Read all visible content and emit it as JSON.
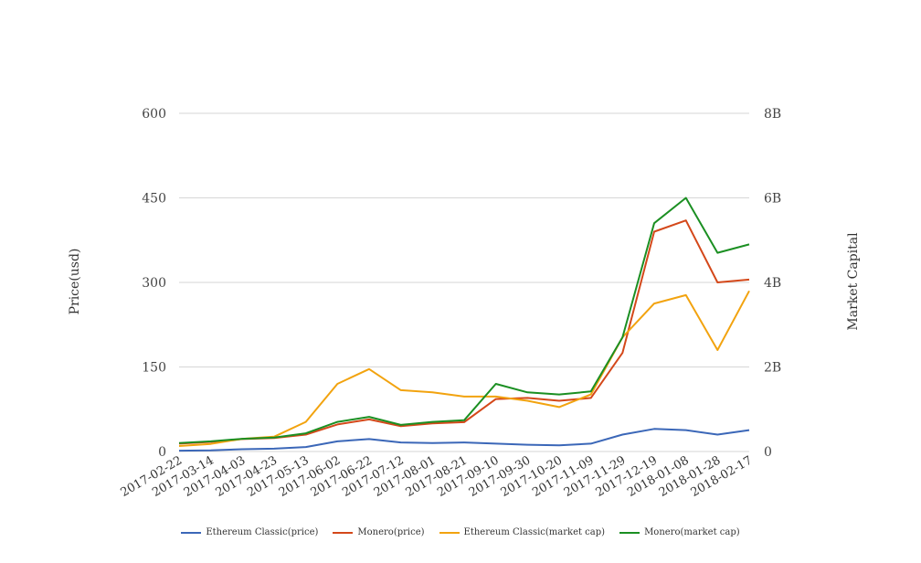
{
  "chart_data": {
    "type": "line",
    "x": [
      "2017-02-22",
      "2017-03-14",
      "2017-04-03",
      "2017-04-23",
      "2017-05-13",
      "2017-06-02",
      "2017-06-22",
      "2017-07-12",
      "2017-08-01",
      "2017-08-21",
      "2017-09-10",
      "2017-09-30",
      "2017-10-20",
      "2017-11-09",
      "2017-11-29",
      "2017-12-19",
      "2018-01-08",
      "2018-01-28",
      "2018-02-17"
    ],
    "xticks": [
      "2017-02-22",
      "2017-03-14",
      "2017-04-03",
      "2017-04-23",
      "2017-05-13",
      "2017-06-02",
      "2017-06-22",
      "2017-07-12",
      "2017-08-01",
      "2017-08-21",
      "2017-09-10",
      "2017-09-30",
      "2017-10-20",
      "2017-11-09",
      "2017-11-29",
      "2017-12-19",
      "2018-01-08",
      "2018-01-28",
      "2018-02-17"
    ],
    "ylabel": "Price(usd)",
    "y2label": "Market Capital",
    "ylim": [
      0,
      600
    ],
    "y2lim": [
      0,
      8000000000
    ],
    "yticks": [
      "0",
      "150",
      "300",
      "450",
      "600"
    ],
    "y2ticks": [
      "0",
      "2B",
      "4B",
      "6B",
      "8B"
    ],
    "grid": true,
    "legend_position": "bottom",
    "series": [
      {
        "name": "Ethereum Classic(price)",
        "axis": "left",
        "color": "#3b67b8",
        "values": [
          1.5,
          2,
          4,
          5,
          8,
          18,
          22,
          16,
          15,
          16,
          14,
          12,
          11,
          14,
          30,
          40,
          38,
          30,
          38
        ]
      },
      {
        "name": "Monero(price)",
        "axis": "left",
        "color": "#d4481a",
        "values": [
          14,
          17,
          22,
          24,
          30,
          48,
          57,
          45,
          50,
          52,
          93,
          95,
          90,
          95,
          175,
          390,
          410,
          300,
          305
        ]
      },
      {
        "name": "Ethereum Classic(market cap)",
        "axis": "right",
        "color": "#f2a30f",
        "values": [
          130000000,
          180000000,
          300000000,
          350000000,
          700000000,
          1600000000,
          1950000000,
          1450000000,
          1400000000,
          1300000000,
          1300000000,
          1200000000,
          1050000000,
          1350000000,
          2700000000,
          3500000000,
          3700000000,
          2400000000,
          3800000000
        ]
      },
      {
        "name": "Monero(market cap)",
        "axis": "right",
        "color": "#1b8f22",
        "values": [
          200000000,
          240000000,
          300000000,
          330000000,
          430000000,
          700000000,
          820000000,
          630000000,
          700000000,
          740000000,
          1600000000,
          1400000000,
          1350000000,
          1420000000,
          2700000000,
          5400000000,
          6000000000,
          4700000000,
          4900000000
        ]
      }
    ]
  }
}
